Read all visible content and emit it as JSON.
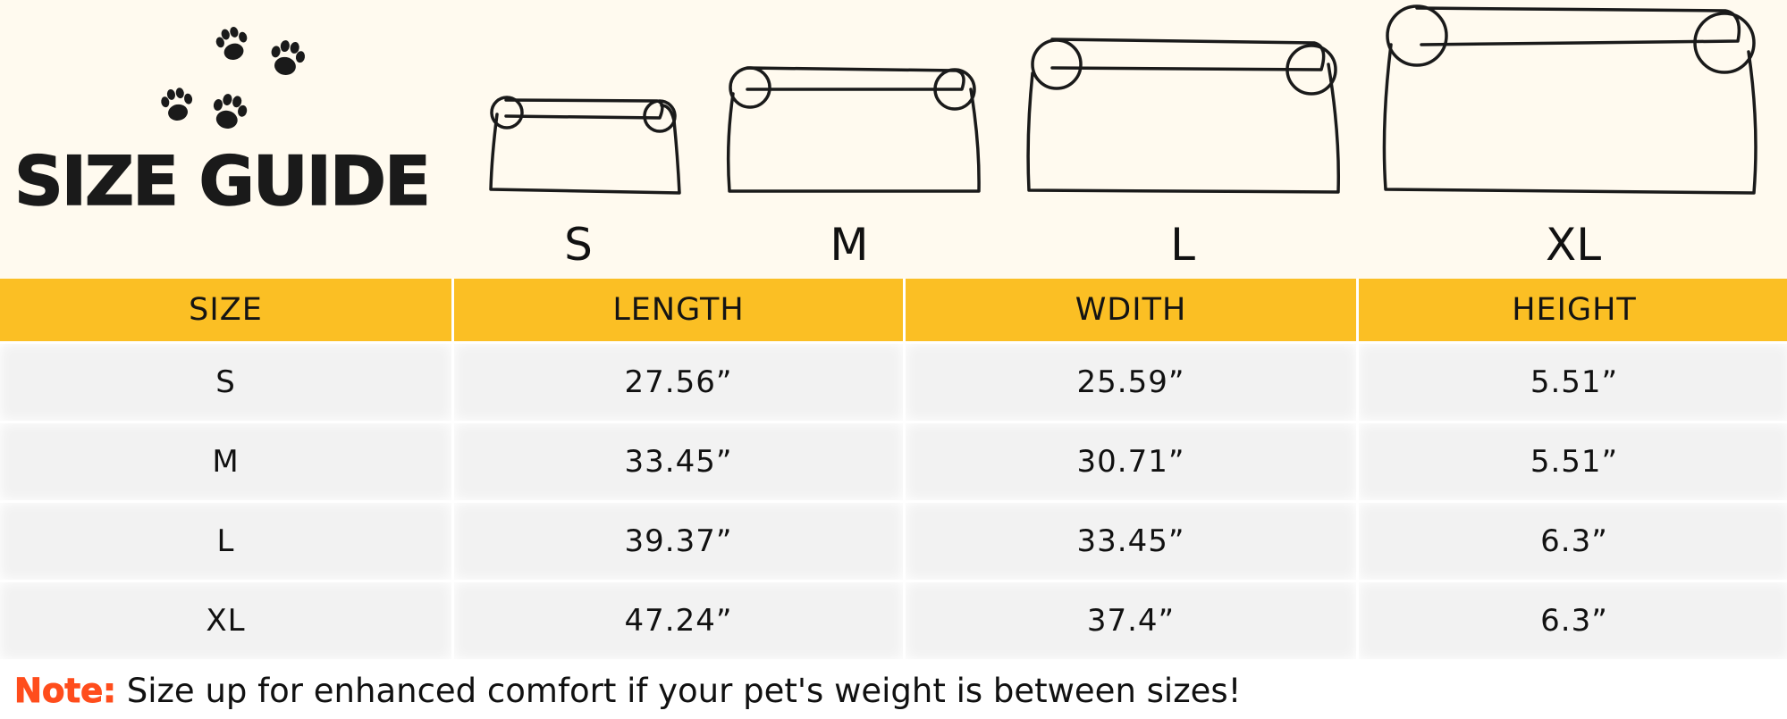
{
  "title": "SIZE GUIDE",
  "icons": {
    "paws": "paw-prints-icon"
  },
  "colors": {
    "header_bg": "#fbbf24",
    "top_band_bg": "#fffaef",
    "row_bg": "#f2f2f2",
    "note_label": "#ff4d1c"
  },
  "beds": [
    {
      "label": "S"
    },
    {
      "label": "M"
    },
    {
      "label": "L"
    },
    {
      "label": "XL"
    }
  ],
  "table": {
    "headers": [
      "SIZE",
      "LENGTH",
      "WDITH",
      "HEIGHT"
    ],
    "rows": [
      [
        "S",
        "27.56”",
        "25.59”",
        "5.51”"
      ],
      [
        "M",
        "33.45”",
        "30.71”",
        "5.51”"
      ],
      [
        "L",
        "39.37”",
        "33.45”",
        "6.3”"
      ],
      [
        "XL",
        "47.24”",
        "37.4”",
        "6.3”"
      ]
    ]
  },
  "note": {
    "label": "Note:",
    "text": " Size up for enhanced comfort if your pet's weight is between sizes!"
  }
}
